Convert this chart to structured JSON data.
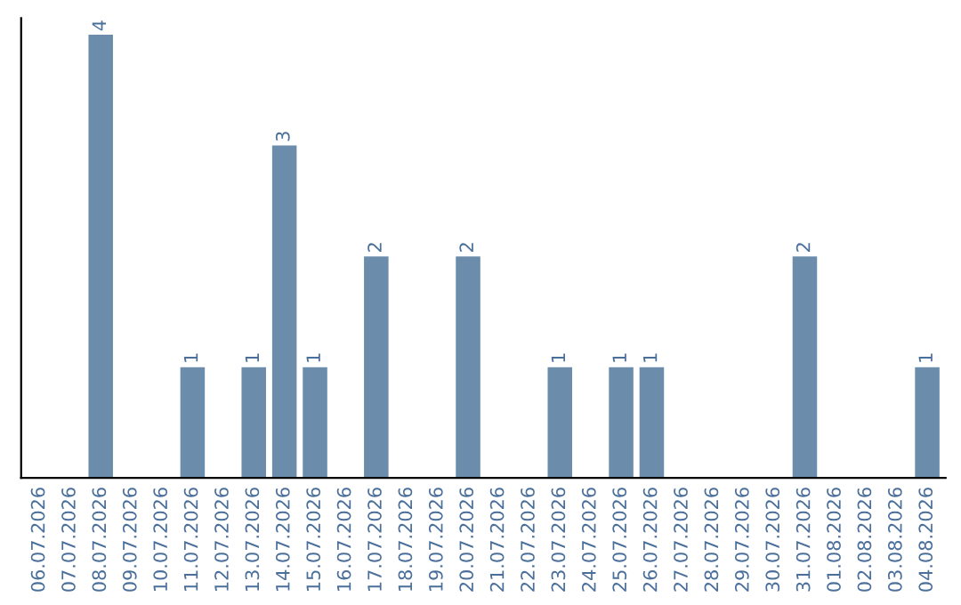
{
  "chart_data": {
    "type": "bar",
    "categories": [
      "06.07.2026",
      "07.07.2026",
      "08.07.2026",
      "09.07.2026",
      "10.07.2026",
      "11.07.2026",
      "12.07.2026",
      "13.07.2026",
      "14.07.2026",
      "15.07.2026",
      "16.07.2026",
      "17.07.2026",
      "18.07.2026",
      "19.07.2026",
      "20.07.2026",
      "21.07.2026",
      "22.07.2026",
      "23.07.2026",
      "24.07.2026",
      "25.07.2026",
      "26.07.2026",
      "27.07.2026",
      "28.07.2026",
      "29.07.2026",
      "30.07.2026",
      "31.07.2026",
      "01.08.2026",
      "02.08.2026",
      "03.08.2026",
      "04.08.2026"
    ],
    "values": [
      0,
      0,
      4,
      0,
      0,
      1,
      0,
      1,
      3,
      1,
      0,
      2,
      0,
      0,
      2,
      0,
      0,
      1,
      0,
      1,
      1,
      0,
      0,
      0,
      0,
      2,
      0,
      0,
      0,
      1
    ],
    "value_labels": [
      null,
      null,
      "4",
      null,
      null,
      "1",
      null,
      "1",
      "3",
      "1",
      null,
      "2",
      null,
      null,
      "2",
      null,
      null,
      "1",
      null,
      "1",
      "1",
      null,
      null,
      null,
      null,
      "2",
      null,
      null,
      null,
      "1"
    ],
    "color": "#6b8cab",
    "ylim": [
      0,
      4.15
    ],
    "tick_labels": "x",
    "grid": false
  }
}
